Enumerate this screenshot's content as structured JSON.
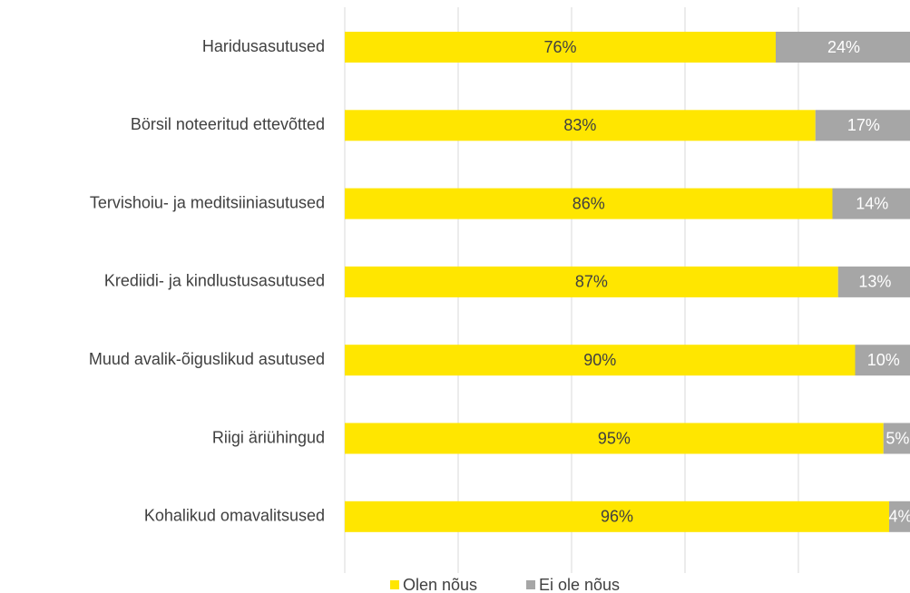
{
  "chart_data": {
    "type": "stacked-barh",
    "categories": [
      "Haridusasutused",
      "Börsil noteeritud ettevõtted",
      "Tervishoiu- ja meditsiiniasutused",
      "Krediidi- ja kindlustusasutused",
      "Muud avalik-õiguslikud asutused",
      "Riigi äriühingud",
      "Kohalikud omavalitsused"
    ],
    "series": [
      {
        "name": "Olen nõus",
        "color": "#ffe600",
        "values": [
          76,
          83,
          86,
          87,
          90,
          95,
          96
        ],
        "value_labels": [
          "76%",
          "83%",
          "86%",
          "87%",
          "90%",
          "95%",
          "96%"
        ]
      },
      {
        "name": "Ei ole nõus",
        "color": "#a6a6a6",
        "values": [
          24,
          17,
          14,
          13,
          10,
          5,
          4
        ],
        "value_labels": [
          "24%",
          "17%",
          "14%",
          "13%",
          "10%",
          "5%",
          "4%"
        ]
      }
    ],
    "xlim": [
      0,
      100
    ],
    "xticks": [
      0,
      20,
      40,
      60,
      80,
      100
    ],
    "grid": true,
    "legend": "bottom"
  }
}
